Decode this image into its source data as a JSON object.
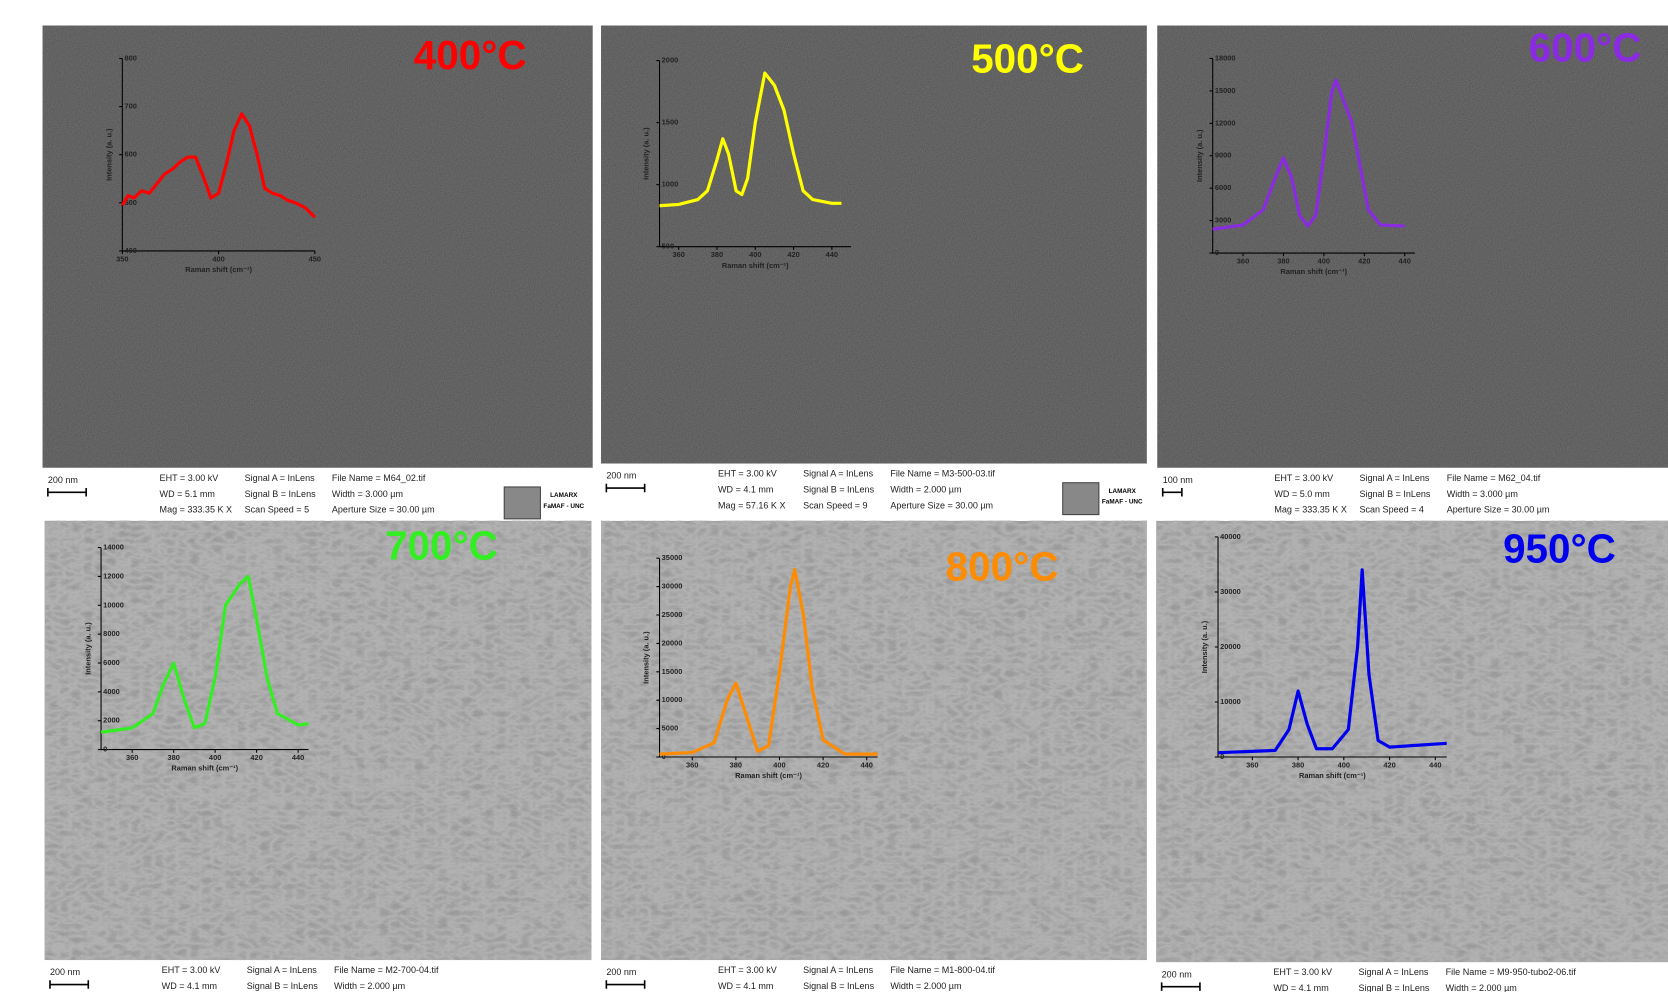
{
  "chart_data": [
    {
      "type": "line",
      "title": "400°C",
      "color": "#ff0000",
      "xlabel": "Raman shift (cm⁻¹)",
      "ylabel": "Intensity (a. u.)",
      "x": [
        350,
        353,
        356,
        360,
        364,
        368,
        372,
        376,
        380,
        384,
        388,
        392,
        396,
        400,
        404,
        408,
        412,
        416,
        420,
        424,
        428,
        432,
        436,
        440,
        445,
        450
      ],
      "values": [
        495,
        515,
        510,
        525,
        520,
        540,
        560,
        570,
        585,
        595,
        595,
        555,
        510,
        520,
        580,
        650,
        685,
        660,
        600,
        530,
        520,
        515,
        505,
        500,
        490,
        470
      ],
      "xlim": [
        350,
        450
      ],
      "xticks": [
        350,
        400,
        450
      ],
      "ylim": [
        400,
        800
      ],
      "yticks": [
        400,
        500,
        600,
        700,
        800
      ]
    },
    {
      "type": "line",
      "title": "500°C",
      "color": "#ffff00",
      "xlabel": "Raman shift (cm⁻¹)",
      "ylabel": "Intensity (a. u.)",
      "x": [
        350,
        360,
        370,
        375,
        380,
        383,
        386,
        390,
        393,
        396,
        400,
        405,
        410,
        415,
        420,
        425,
        430,
        440,
        445
      ],
      "values": [
        830,
        840,
        880,
        950,
        1200,
        1370,
        1250,
        950,
        920,
        1050,
        1500,
        1900,
        1800,
        1600,
        1250,
        950,
        880,
        850,
        850
      ],
      "xlim": [
        350,
        450
      ],
      "xticks": [
        360,
        380,
        400,
        420,
        440
      ],
      "ylim": [
        500,
        2000
      ],
      "yticks": [
        500,
        1000,
        1500,
        2000
      ]
    },
    {
      "type": "line",
      "title": "600°C",
      "color": "#8a2be2",
      "xlabel": "Raman shift (cm⁻¹)",
      "ylabel": "Intensity (a. u.)",
      "x": [
        345,
        360,
        370,
        376,
        380,
        384,
        388,
        392,
        396,
        400,
        404,
        406,
        410,
        414,
        418,
        422,
        428,
        440
      ],
      "values": [
        2200,
        2600,
        4000,
        7000,
        8800,
        7000,
        3500,
        2500,
        3500,
        9000,
        15000,
        16000,
        14000,
        12000,
        8000,
        4000,
        2600,
        2500
      ],
      "xlim": [
        345,
        445
      ],
      "xticks": [
        360,
        380,
        400,
        420,
        440
      ],
      "ylim": [
        0,
        18000
      ],
      "yticks": [
        0,
        3000,
        6000,
        9000,
        12000,
        15000,
        18000
      ]
    },
    {
      "type": "line",
      "title": "700°C",
      "color": "#33ee22",
      "xlabel": "Raman shift (cm⁻¹)",
      "ylabel": "Intensity (a. u.)",
      "x": [
        345,
        360,
        370,
        375,
        380,
        385,
        390,
        395,
        400,
        405,
        412,
        416,
        420,
        425,
        430,
        440,
        445
      ],
      "values": [
        1200,
        1500,
        2500,
        4500,
        6000,
        3500,
        1500,
        1800,
        5000,
        10000,
        11500,
        12000,
        9000,
        5000,
        2500,
        1700,
        1800
      ],
      "xlim": [
        345,
        445
      ],
      "xticks": [
        360,
        380,
        400,
        420,
        440
      ],
      "ylim": [
        0,
        14000
      ],
      "yticks": [
        0,
        2000,
        4000,
        6000,
        8000,
        10000,
        12000,
        14000
      ]
    },
    {
      "type": "line",
      "title": "800°C",
      "color": "#ff8c00",
      "xlabel": "Raman shift (cm⁻¹)",
      "ylabel": "Intensity (a. u.)",
      "x": [
        345,
        360,
        370,
        376,
        380,
        385,
        390,
        395,
        400,
        405,
        407,
        411,
        415,
        420,
        430,
        445
      ],
      "values": [
        500,
        800,
        2500,
        10000,
        13000,
        7000,
        1000,
        2000,
        15000,
        30000,
        33000,
        25000,
        12000,
        3000,
        500,
        500
      ],
      "xlim": [
        345,
        445
      ],
      "xticks": [
        360,
        380,
        400,
        420,
        440
      ],
      "ylim": [
        0,
        35000
      ],
      "yticks": [
        0,
        5000,
        10000,
        15000,
        20000,
        25000,
        30000,
        35000
      ]
    },
    {
      "type": "line",
      "title": "950°C",
      "color": "#0000ee",
      "xlabel": "Raman shift (cm⁻¹)",
      "ylabel": "Intensity (a. u.)",
      "x": [
        345,
        370,
        376,
        380,
        384,
        388,
        395,
        402,
        406,
        408,
        411,
        415,
        420,
        445
      ],
      "values": [
        800,
        1200,
        5000,
        12000,
        6000,
        1500,
        1500,
        5000,
        20000,
        34000,
        15000,
        3000,
        1800,
        2500
      ],
      "xlim": [
        345,
        445
      ],
      "xticks": [
        360,
        380,
        400,
        420,
        440
      ],
      "ylim": [
        0,
        40000
      ],
      "yticks": [
        0,
        10000,
        20000,
        30000,
        40000
      ]
    }
  ],
  "panels": [
    {
      "scale_bar": "200 nm",
      "info": [
        [
          "EHT = 3.00 kV",
          "Signal A = InLens",
          "File Name = M64_02.tif"
        ],
        [
          "WD = 5.1 mm",
          "Signal B = InLens",
          "Width = 3.000 µm"
        ],
        [
          "Mag = 333.35 K X",
          "Scan Speed = 5",
          "Aperture Size = 30.00 µm"
        ]
      ],
      "logo": [
        "LAMARX",
        "FaMAF - UNC"
      ]
    },
    {
      "scale_bar": "200 nm",
      "info": [
        [
          "EHT = 3.00 kV",
          "Signal A = InLens",
          "File Name = M3-500-03.tif"
        ],
        [
          "WD = 4.1 mm",
          "Signal B = InLens",
          "Width = 2.000 µm"
        ],
        [
          "Mag = 57.16 K X",
          "Scan Speed = 9",
          "Aperture Size = 30.00 µm"
        ]
      ],
      "logo": [
        "LAMARX",
        "FaMAF - UNC"
      ]
    },
    {
      "scale_bar": "100 nm",
      "info": [
        [
          "EHT = 3.00 kV",
          "Signal A = InLens",
          "File Name = M62_04.tif"
        ],
        [
          "WD = 5.0 mm",
          "Signal B = InLens",
          "Width = 3.000 µm"
        ],
        [
          "Mag = 333.35 K X",
          "Scan Speed = 4",
          "Aperture Size = 30.00 µm"
        ]
      ]
    },
    {
      "scale_bar": "200 nm",
      "info": [
        [
          "EHT = 3.00 kV",
          "Signal A = InLens",
          "File Name = M2-700-04.tif"
        ],
        [
          "WD = 4.1 mm",
          "Signal B = InLens",
          "Width = 2.000 µm"
        ]
      ]
    },
    {
      "scale_bar": "200 nm",
      "info": [
        [
          "EHT = 3.00 kV",
          "Signal A = InLens",
          "File Name = M1-800-04.tif"
        ],
        [
          "WD = 4.1 mm",
          "Signal B = InLens",
          "Width = 2.000 µm"
        ]
      ]
    },
    {
      "scale_bar": "200 nm",
      "info": [
        [
          "EHT = 3.00 kV",
          "Signal A = InLens",
          "File Name = M9-950-tubo2-06.tif"
        ],
        [
          "WD = 4.1 mm",
          "Signal B = InLens",
          "Width = 2.000 µm"
        ]
      ]
    }
  ]
}
